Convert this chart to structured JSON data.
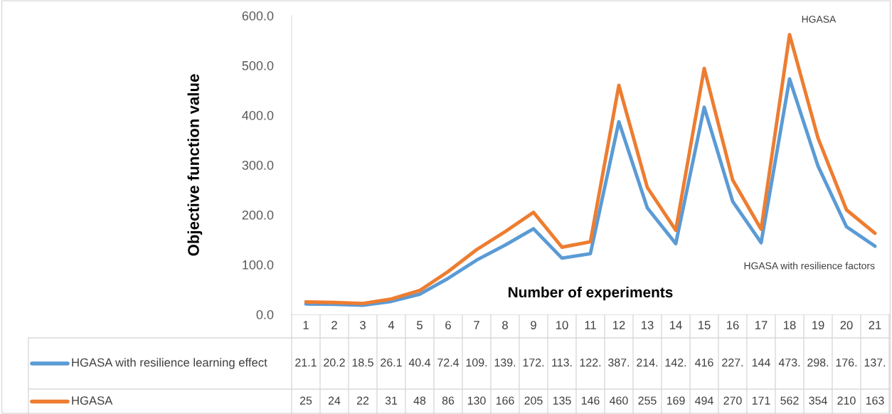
{
  "chart_data": {
    "type": "line",
    "xlabel": "Number of experiments",
    "ylabel": "Objective function value",
    "categories": [
      "1",
      "2",
      "3",
      "4",
      "5",
      "6",
      "7",
      "8",
      "9",
      "10",
      "11",
      "12",
      "13",
      "14",
      "15",
      "16",
      "17",
      "18",
      "19",
      "20",
      "21"
    ],
    "series": [
      {
        "name": "HGASA with resilience learning effect",
        "color": "#5b9bd5",
        "values": [
          21.1,
          20.2,
          18.5,
          26.1,
          40.4,
          72.4,
          109,
          139,
          172,
          113,
          122,
          387,
          214,
          142,
          416,
          227,
          144,
          473,
          298,
          176,
          137
        ],
        "value_labels": [
          "21.1",
          "20.2",
          "18.5",
          "26.1",
          "40.4",
          "72.4",
          "109.",
          "139.",
          "172.",
          "113.",
          "122.",
          "387.",
          "214.",
          "142.",
          "416",
          "227.",
          "144",
          "473.",
          "298.",
          "176.",
          "137."
        ]
      },
      {
        "name": "HGASA",
        "color": "#ed7d31",
        "values": [
          25,
          24,
          22,
          31,
          48,
          86,
          130,
          166,
          205,
          135,
          146,
          460,
          255,
          169,
          494,
          270,
          171,
          562,
          354,
          210,
          163
        ],
        "value_labels": [
          "25",
          "24",
          "22",
          "31",
          "48",
          "86",
          "130",
          "166",
          "205",
          "135",
          "146",
          "460",
          "255",
          "169",
          "494",
          "270",
          "171",
          "562",
          "354",
          "210",
          "163"
        ]
      }
    ],
    "ylim": [
      0,
      600
    ],
    "yticks": [
      {
        "value": 0,
        "label": "0.0"
      },
      {
        "value": 100,
        "label": "100.0"
      },
      {
        "value": 200,
        "label": "200.0"
      },
      {
        "value": 300,
        "label": "300.0"
      },
      {
        "value": 400,
        "label": "400.0"
      },
      {
        "value": 500,
        "label": "500.0"
      },
      {
        "value": 600,
        "label": "600.0"
      }
    ],
    "annotations": [
      {
        "text": "HGASA",
        "x": "18",
        "y": 562
      },
      {
        "text": "HGASA with resilience factors",
        "x": "21",
        "y": 137
      }
    ],
    "legend": "bottom",
    "grid": false,
    "marker": "none",
    "line_style": "solid"
  }
}
